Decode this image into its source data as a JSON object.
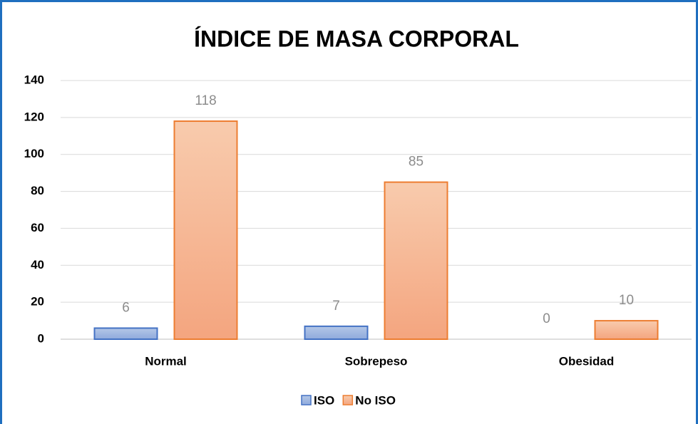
{
  "chart_data": {
    "type": "bar",
    "title": "ÍNDICE DE MASA CORPORAL",
    "categories": [
      "Normal",
      "Sobrepeso",
      "Obesidad"
    ],
    "series": [
      {
        "name": "ISO",
        "color": "#4472c4",
        "values": [
          6,
          7,
          0
        ]
      },
      {
        "name": "No ISO",
        "color": "#ed7d31",
        "values": [
          118,
          85,
          10
        ]
      }
    ],
    "ylim": [
      0,
      140
    ],
    "yticks": [
      0,
      20,
      40,
      60,
      80,
      100,
      120,
      140
    ],
    "grid": true,
    "legend": "bottom"
  }
}
